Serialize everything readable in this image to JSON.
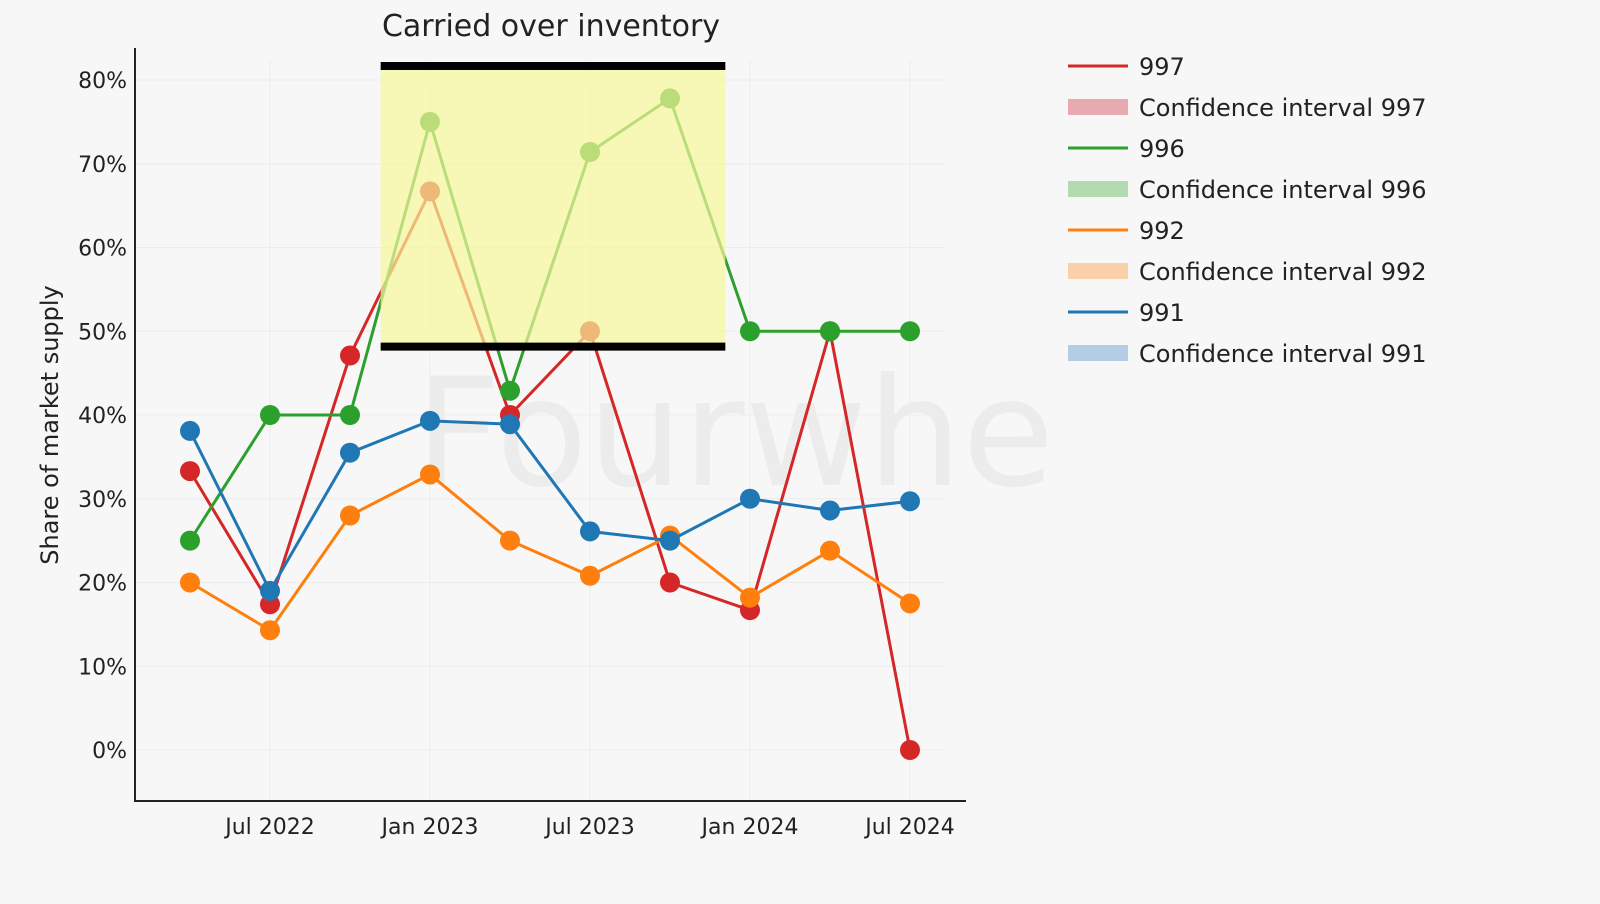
{
  "chart_data": {
    "type": "line",
    "title": "Carried over inventory",
    "xlabel": "",
    "ylabel": "Share of market supply",
    "ylim": [
      -6,
      84
    ],
    "yticks": [
      0,
      10,
      20,
      30,
      40,
      50,
      60,
      70,
      80
    ],
    "ytick_labels": [
      "0%",
      "10%",
      "20%",
      "30%",
      "40%",
      "50%",
      "60%",
      "70%",
      "80%"
    ],
    "x": [
      "2022-04",
      "2022-07",
      "2022-10",
      "2023-01",
      "2023-04",
      "2023-07",
      "2023-10",
      "2024-01",
      "2024-04",
      "2024-07"
    ],
    "xticks": [
      "2022-07",
      "2023-01",
      "2023-07",
      "2024-01",
      "2024-07"
    ],
    "xtick_labels": [
      "Jul 2022",
      "Jan 2023",
      "Jul 2023",
      "Jan 2024",
      "Jul 2024"
    ],
    "series": [
      {
        "name": "997",
        "color": "#d62728",
        "values": [
          33.3,
          17.4,
          47.1,
          66.7,
          40.0,
          50.0,
          20.0,
          16.7,
          50.0,
          0.0
        ]
      },
      {
        "name": "996",
        "color": "#2ca02c",
        "values": [
          25.0,
          40.0,
          40.0,
          75.0,
          42.9,
          71.4,
          77.8,
          50.0,
          50.0,
          50.0
        ]
      },
      {
        "name": "992",
        "color": "#ff7f0e",
        "values": [
          20.0,
          14.3,
          28.0,
          32.9,
          25.0,
          20.8,
          25.6,
          18.2,
          23.8,
          17.5
        ]
      },
      {
        "name": "991",
        "color": "#1f77b4",
        "values": [
          38.1,
          19.0,
          35.5,
          39.3,
          38.9,
          26.1,
          25.0,
          30.0,
          28.6,
          29.7
        ]
      }
    ],
    "legend": {
      "placement": "right",
      "entries": [
        {
          "label": "997",
          "kind": "line",
          "color": "#d62728"
        },
        {
          "label": "Confidence interval 997",
          "kind": "band",
          "color": "#e8aab0"
        },
        {
          "label": "996",
          "kind": "line",
          "color": "#2ca02c"
        },
        {
          "label": "Confidence interval 996",
          "kind": "band",
          "color": "#b3dab0"
        },
        {
          "label": "992",
          "kind": "line",
          "color": "#ff7f0e"
        },
        {
          "label": "Confidence interval 992",
          "kind": "band",
          "color": "#fbcfaa"
        },
        {
          "label": "991",
          "kind": "line",
          "color": "#1f77b4"
        },
        {
          "label": "Confidence interval 991",
          "kind": "band",
          "color": "#b4cde4"
        }
      ]
    },
    "annotation": {
      "type": "highlight-box",
      "x_range": [
        "2022-11",
        "2023-12"
      ],
      "y_range": [
        49,
        80
      ],
      "color": "#f7f79a"
    },
    "grid": true,
    "watermark": "Fourwhe"
  }
}
